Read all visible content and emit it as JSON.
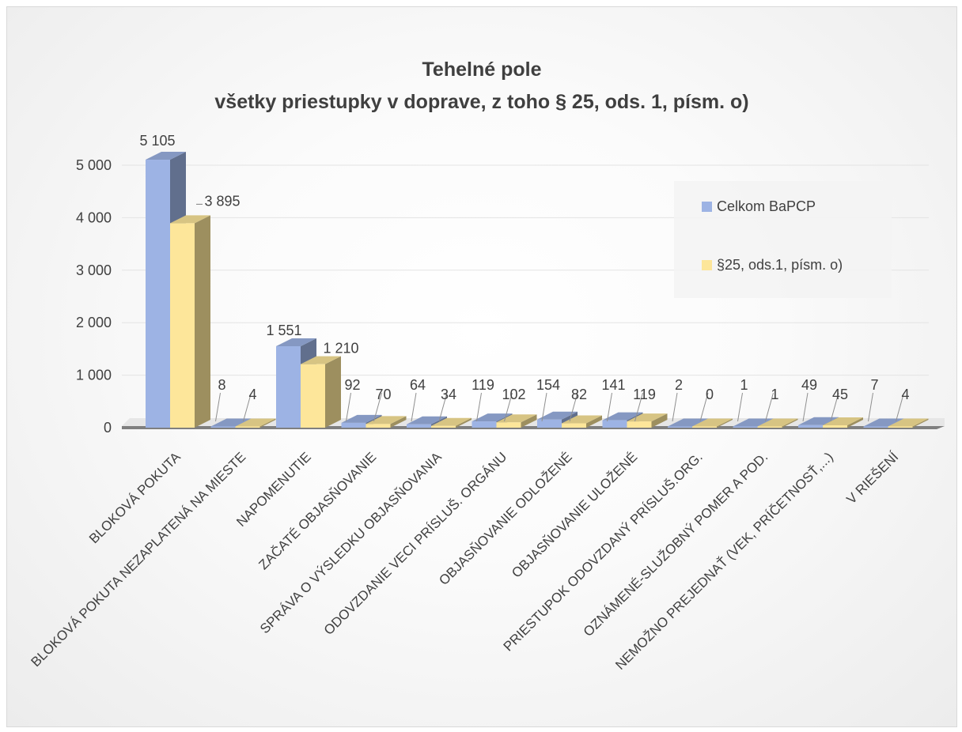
{
  "chart_data": {
    "type": "bar",
    "title": "Tehelné pole",
    "subtitle": "všetky priestupky v doprave, z toho § 25, ods. 1, písm. o)",
    "categories": [
      "BLOKOVÁ POKUTA",
      "BLOKOVÁ POKUTA NEZAPLATENÁ NA MIESTE",
      "NAPOMENUTIE",
      "ZAČATÉ OBJASŇOVANIE",
      "SPRÁVA O VÝSLEDKU OBJASŇOVANIA",
      "ODOVZDANIE VECI PRÍSLUŠ. ORGÁNU",
      "OBJASŇOVANIE ODLOŽENÉ",
      "OBJASŇOVANIE ULOŽENÉ",
      "PRIESTUPOK ODOVZDANÝ PRÍSLUŠ.ORG.",
      "OZNÁMENÉ-SLUŽOBNÝ POMER A POD.",
      "NEMOŽNO PREJEDNAŤ (VEK, PRÍČETNOSŤ,...)",
      "V RIEŠENÍ"
    ],
    "series": [
      {
        "name": "Celkom BaPCP",
        "color": "#9db3e4",
        "values": [
          5105,
          8,
          1551,
          92,
          64,
          119,
          154,
          141,
          2,
          1,
          49,
          7
        ],
        "labels": [
          "5 105",
          "8",
          "1 551",
          "92",
          "64",
          "119",
          "154",
          "141",
          "2",
          "1",
          "49",
          "7"
        ]
      },
      {
        "name": "§25, ods.1, písm. o)",
        "color": "#fde69a",
        "values": [
          3895,
          4,
          1210,
          70,
          34,
          102,
          82,
          119,
          0,
          1,
          45,
          4
        ],
        "labels": [
          "3 895",
          "4",
          "1 210",
          "70",
          "34",
          "102",
          "82",
          "119",
          "0",
          "1",
          "45",
          "4"
        ]
      }
    ],
    "y_ticks": [
      0,
      1000,
      2000,
      3000,
      4000,
      5000
    ],
    "y_tick_labels": [
      "0",
      "1 000",
      "2 000",
      "3 000",
      "4 000",
      "5 000"
    ],
    "ylim": [
      0,
      5000
    ],
    "grid": true,
    "legend": "right"
  }
}
